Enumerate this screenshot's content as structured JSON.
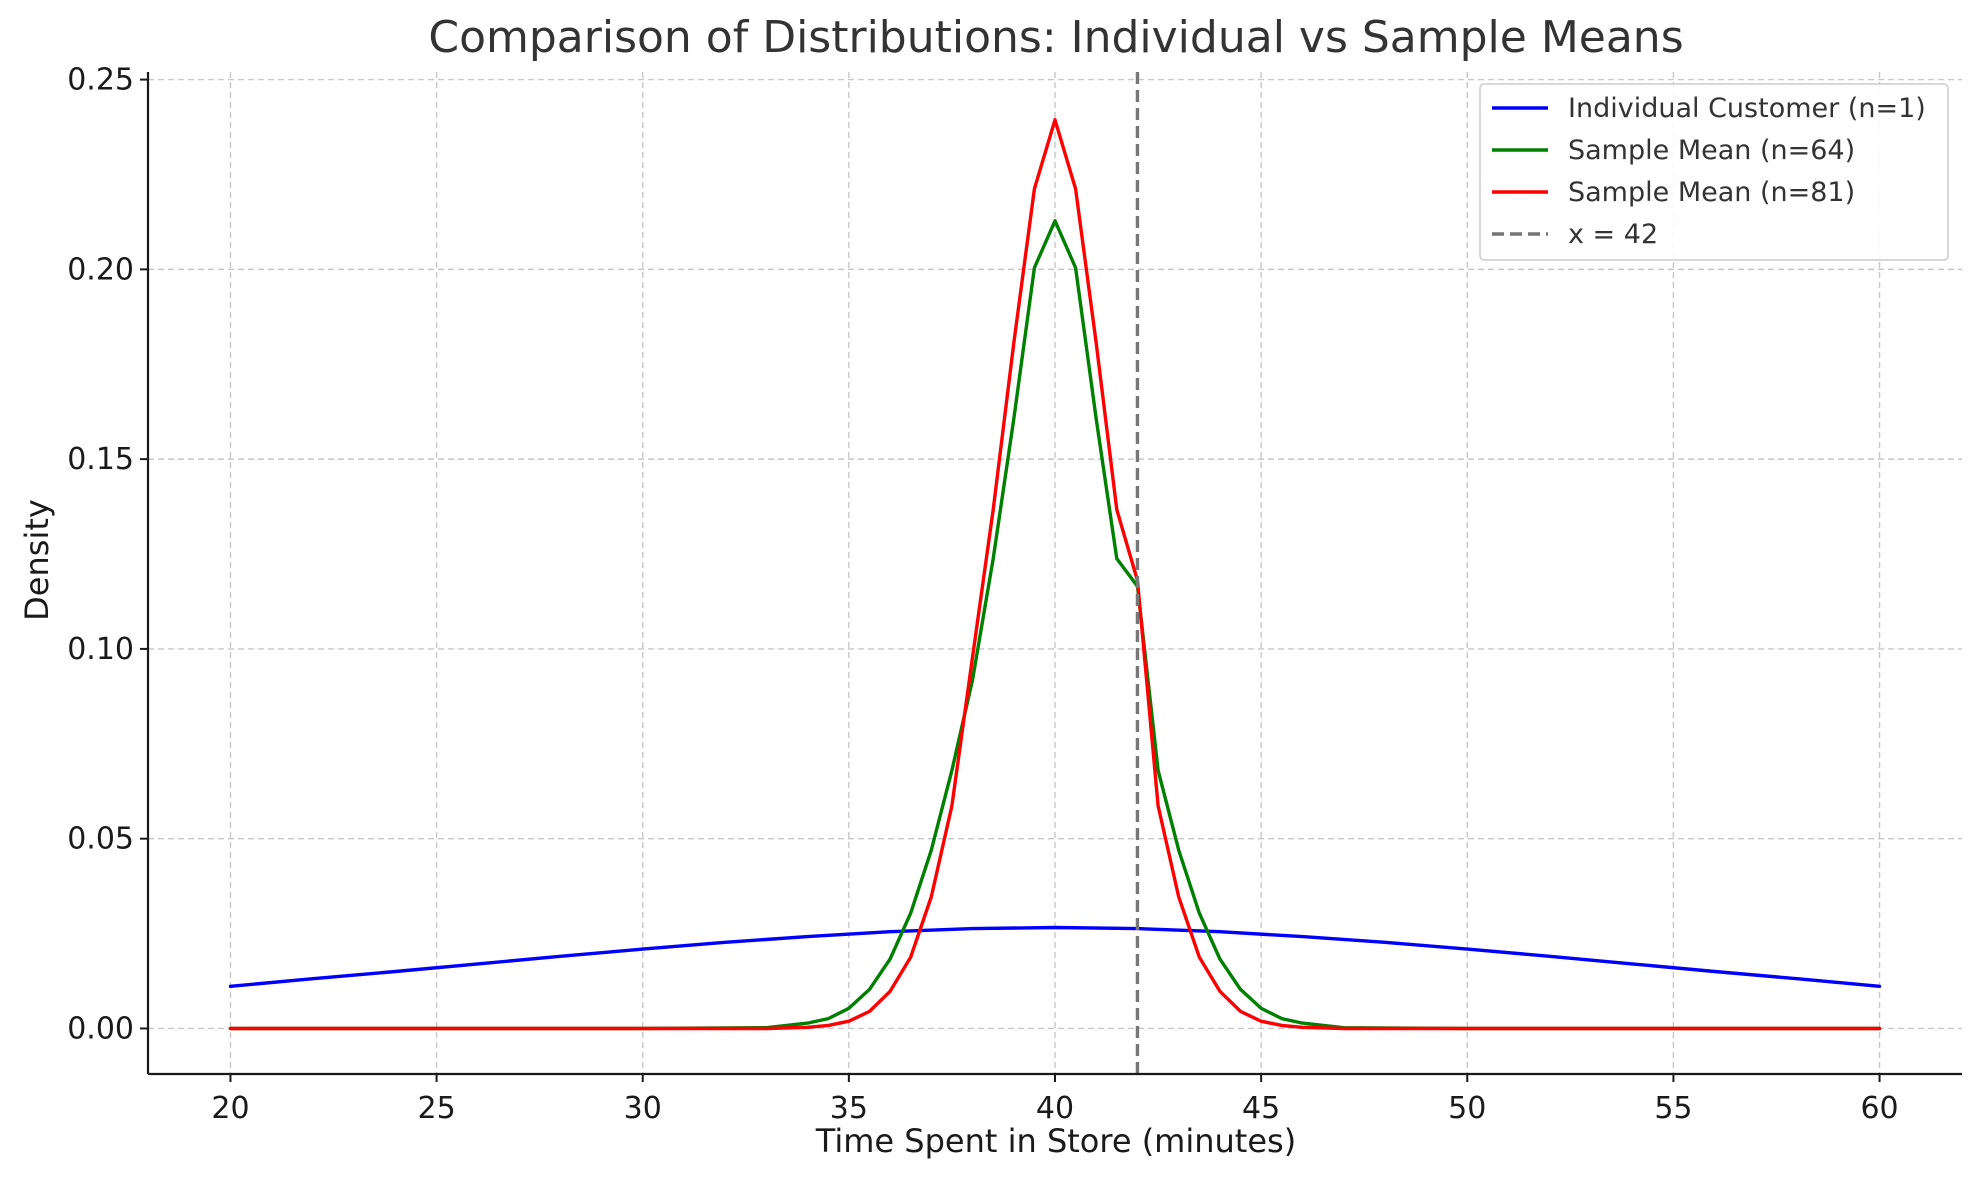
{
  "chart_data": {
    "type": "line",
    "title": "Comparison of Distributions: Individual vs Sample Means",
    "xlabel": "Time Spent in Store (minutes)",
    "ylabel": "Density",
    "xlim": [
      18,
      62
    ],
    "ylim": [
      -0.012,
      0.252
    ],
    "xticks": [
      20,
      25,
      30,
      35,
      40,
      45,
      50,
      55,
      60
    ],
    "xtick_labels": [
      "20",
      "25",
      "30",
      "35",
      "40",
      "45",
      "50",
      "55",
      "60"
    ],
    "yticks": [
      0.0,
      0.05,
      0.1,
      0.15,
      0.2,
      0.25
    ],
    "ytick_labels": [
      "0.00",
      "0.05",
      "0.10",
      "0.15",
      "0.20",
      "0.25"
    ],
    "grid": true,
    "legend_position": "top-right",
    "series": [
      {
        "name": "Individual Customer (n=1)",
        "color": "#0000ff",
        "x": [
          20,
          22,
          24,
          26,
          28,
          30,
          32,
          34,
          36,
          38,
          40,
          42,
          44,
          46,
          48,
          50,
          52,
          54,
          56,
          58,
          60
        ],
        "y": [
          0.0111,
          0.0131,
          0.015,
          0.017,
          0.019,
          0.0209,
          0.0227,
          0.0242,
          0.0255,
          0.0263,
          0.0266,
          0.0263,
          0.0255,
          0.0242,
          0.0227,
          0.0209,
          0.019,
          0.017,
          0.015,
          0.0131,
          0.0111
        ]
      },
      {
        "name": "Sample Mean (n=64)",
        "color": "#008000",
        "x": [
          20,
          30,
          33,
          34,
          34.5,
          35,
          35.5,
          36,
          36.5,
          37,
          37.5,
          38,
          38.5,
          39,
          39.5,
          40,
          40.5,
          41,
          41.5,
          42,
          42.5,
          43,
          43.5,
          44,
          44.5,
          45,
          45.5,
          46,
          47,
          50,
          60
        ],
        "y": [
          0.0,
          0.0,
          0.0002,
          0.0014,
          0.0026,
          0.0053,
          0.0103,
          0.0183,
          0.0304,
          0.047,
          0.068,
          0.0918,
          0.1238,
          0.1606,
          0.2004,
          0.2128,
          0.2004,
          0.1606,
          0.1238,
          0.1165,
          0.068,
          0.047,
          0.0304,
          0.0183,
          0.0103,
          0.0053,
          0.0026,
          0.0014,
          0.0002,
          0.0,
          0.0
        ]
      },
      {
        "name": "Sample Mean (n=81)",
        "color": "#ff0000",
        "x": [
          20,
          30,
          33,
          34,
          34.5,
          35,
          35.5,
          36,
          36.5,
          37,
          37.5,
          38,
          38.5,
          39,
          39.5,
          40,
          40.5,
          41,
          41.5,
          42,
          42.5,
          43,
          43.5,
          44,
          44.5,
          45,
          45.5,
          46,
          47,
          50,
          60
        ],
        "y": [
          0.0,
          0.0,
          0.0,
          0.0003,
          0.0008,
          0.0019,
          0.0045,
          0.0098,
          0.0188,
          0.0347,
          0.0587,
          0.0978,
          0.1367,
          0.1806,
          0.2212,
          0.2394,
          0.2212,
          0.1806,
          0.1367,
          0.118,
          0.0587,
          0.0347,
          0.0188,
          0.0098,
          0.0045,
          0.0019,
          0.0008,
          0.0003,
          0.0,
          0.0,
          0.0
        ]
      }
    ],
    "reference_line": {
      "name": "x = 42",
      "x": 42,
      "color": "#777777",
      "style": "dashed"
    }
  }
}
